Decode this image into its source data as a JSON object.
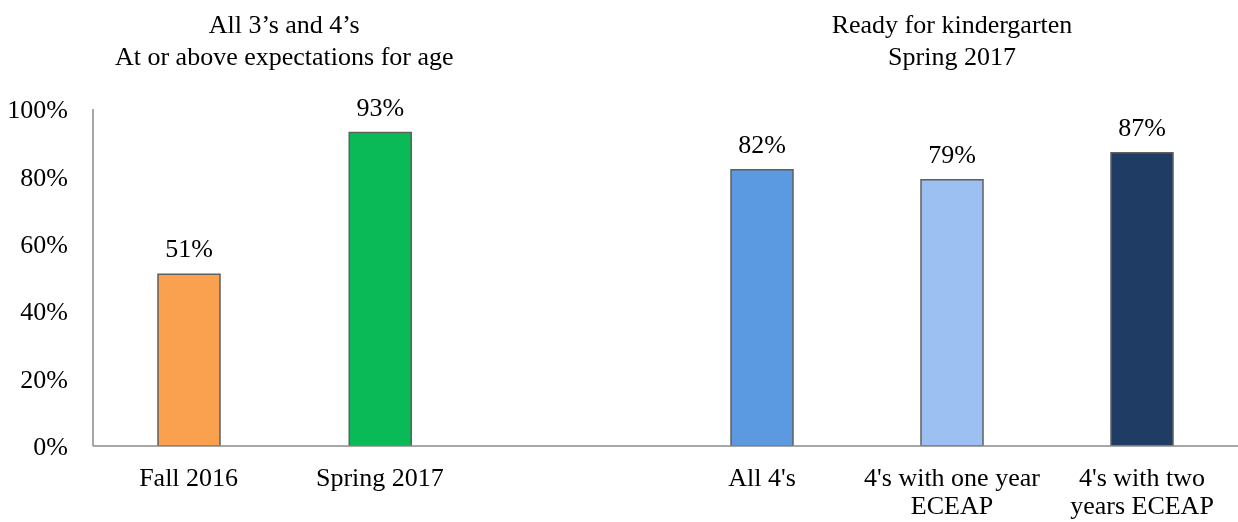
{
  "chart_data": [
    {
      "type": "bar",
      "title": "All 3’s and 4’s\nAt or above expectations for age",
      "categories": [
        "Fall 2016",
        "Spring 2017"
      ],
      "values": [
        51,
        93
      ],
      "colors": [
        "#f9a14e",
        "#0aba56"
      ],
      "value_labels": [
        "51%",
        "93%"
      ],
      "ylim": [
        0,
        100
      ],
      "yticks": [
        {
          "value": 0,
          "label": "0%"
        },
        {
          "value": 20,
          "label": "20%"
        },
        {
          "value": 40,
          "label": "40%"
        },
        {
          "value": 60,
          "label": "60%"
        },
        {
          "value": 80,
          "label": "80%"
        },
        {
          "value": 100,
          "label": "100%"
        }
      ]
    },
    {
      "type": "bar",
      "title": "Ready for kindergarten\nSpring 2017",
      "categories": [
        "All 4's",
        "4's with one year ECEAP",
        "4's with two years ECEAP"
      ],
      "values": [
        82,
        79,
        87
      ],
      "colors": [
        "#5b9ae0",
        "#9cc0f2",
        "#1e3c64"
      ],
      "value_labels": [
        "82%",
        "79%",
        "87%"
      ],
      "ylim": [
        0,
        100
      ],
      "tick_labels": "x"
    }
  ]
}
